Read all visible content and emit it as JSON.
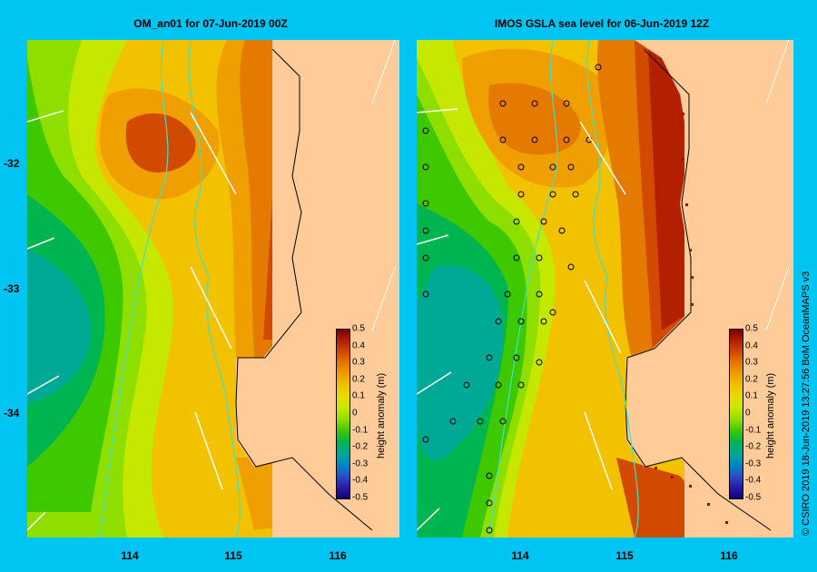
{
  "panels": [
    {
      "title": "OM_an01  for 07-Jun-2019 00Z",
      "colorbar_label": "height anomaly  (m)"
    },
    {
      "title": "IMOS GSLA sea level  for 06-Jun-2019 12Z",
      "colorbar_label": "height anomaly  (m)"
    }
  ],
  "axes": {
    "lat_labels": [
      "-32",
      "-33",
      "-34"
    ],
    "lon_labels": [
      "114",
      "115",
      "116"
    ]
  },
  "colorbar": {
    "ticks": [
      "0.5",
      "0.4",
      "0.3",
      "0.2",
      "0.1",
      "0",
      "-0.1",
      "-0.2",
      "-0.3",
      "-0.4",
      "-0.5"
    ],
    "colors": [
      "#7a0000",
      "#b22000",
      "#d24a00",
      "#e47a00",
      "#efa000",
      "#f2c200",
      "#e6dc00",
      "#c6e800",
      "#8ede00",
      "#3ec800",
      "#00b450",
      "#00a896",
      "#0088c4",
      "#2a50c8",
      "#2a1aa8",
      "#10007a"
    ]
  },
  "credit": "© CSIRO 2019   18-Jun-2019 13:27:56 BoM OceanMAPS v3"
}
